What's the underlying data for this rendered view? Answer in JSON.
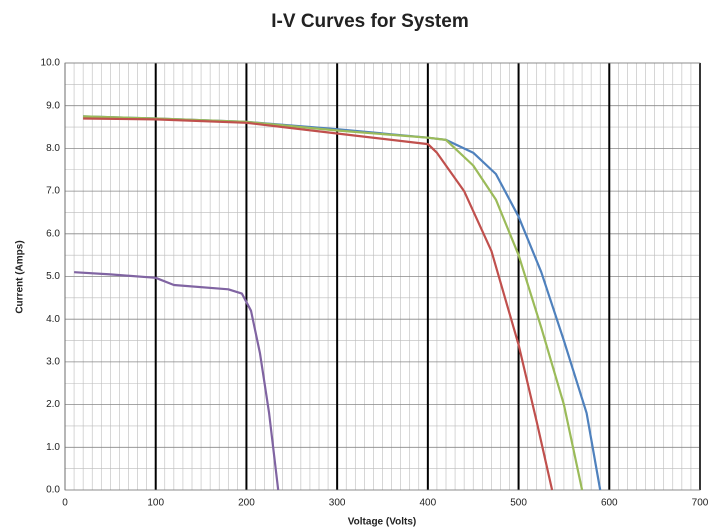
{
  "chart_data": {
    "type": "line",
    "title": "I-V Curves for System",
    "x_label": "Voltage (Volts)",
    "y_label": "Current (Amps)",
    "xlim": [
      0,
      700
    ],
    "xticks": [
      0,
      100,
      200,
      300,
      400,
      500,
      600,
      700
    ],
    "ylim": [
      0,
      10
    ],
    "yticks": [
      {
        "value": 0,
        "label": "0.0"
      },
      {
        "value": 1,
        "label": "1.0"
      },
      {
        "value": 2,
        "label": "2.0"
      },
      {
        "value": 3,
        "label": "3.0"
      },
      {
        "value": 4,
        "label": "4.0"
      },
      {
        "value": 5,
        "label": "5.0"
      },
      {
        "value": 6,
        "label": "6.0"
      },
      {
        "value": 7,
        "label": "7.0"
      },
      {
        "value": 8,
        "label": "8.0"
      },
      {
        "value": 9,
        "label": "9.0"
      },
      {
        "value": 10,
        "label": "10.0"
      }
    ],
    "grid": true,
    "series": [
      {
        "color": "#4f81bd",
        "x": [
          20,
          100,
          200,
          300,
          400,
          420,
          450,
          475,
          500,
          525,
          550,
          575,
          590
        ],
        "values": [
          8.75,
          8.7,
          8.62,
          8.45,
          8.25,
          8.2,
          7.9,
          7.4,
          6.4,
          5.1,
          3.5,
          1.8,
          0
        ]
      },
      {
        "color": "#9bbb59",
        "x": [
          20,
          100,
          200,
          300,
          400,
          420,
          450,
          475,
          500,
          525,
          550,
          570
        ],
        "values": [
          8.75,
          8.7,
          8.62,
          8.42,
          8.25,
          8.2,
          7.6,
          6.8,
          5.5,
          3.8,
          2.0,
          0
        ]
      },
      {
        "color": "#c0504d",
        "x": [
          20,
          100,
          200,
          300,
          400,
          410,
          440,
          470,
          500,
          520,
          537
        ],
        "values": [
          8.7,
          8.68,
          8.6,
          8.35,
          8.1,
          7.9,
          7.0,
          5.6,
          3.4,
          1.6,
          0
        ]
      },
      {
        "color": "#8064a2",
        "x": [
          10,
          50,
          100,
          120,
          180,
          195,
          205,
          215,
          225,
          235
        ],
        "values": [
          5.1,
          5.05,
          4.97,
          4.8,
          4.7,
          4.6,
          4.2,
          3.2,
          1.8,
          0
        ]
      }
    ]
  }
}
